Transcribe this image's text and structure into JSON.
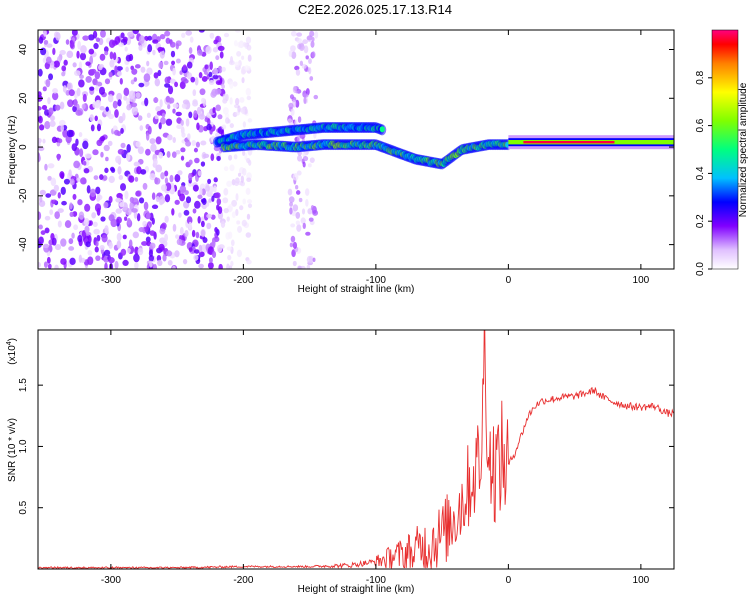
{
  "title": "C2E2.2026.025.17.13.R14",
  "colors": {
    "background": "#ffffff",
    "axis": "#000000",
    "snr_line": "#e83030",
    "scatter_dense": "#6a10e0"
  },
  "chart_data": [
    {
      "type": "heatmap",
      "name": "spectrogram",
      "xlabel": "Height of straight line (km)",
      "ylabel": "Frequency (Hz)",
      "xlim": [
        -355,
        125
      ],
      "ylim": [
        -50,
        48
      ],
      "xticks": [
        -300,
        -200,
        -100,
        0,
        100
      ],
      "yticks": [
        -40,
        -20,
        0,
        20,
        40
      ],
      "xtick_labels": [
        "-300",
        "-200",
        "-100",
        "0",
        "100"
      ],
      "ytick_labels": [
        "-40",
        "-20",
        "0",
        "20",
        "40"
      ],
      "colorbar": {
        "label": "Normalized spectral amplitude",
        "range": [
          0,
          1
        ],
        "ticks": [
          0.0,
          0.2,
          0.4,
          0.6,
          0.8
        ],
        "tick_labels": [
          "0.0",
          "0.2",
          "0.4",
          "0.6",
          "0.8"
        ],
        "colormap": [
          "#ffffff",
          "#e0c0ff",
          "#8000ff",
          "#0000ff",
          "#00c0ff",
          "#00ff80",
          "#80ff00",
          "#ffff00",
          "#ff8000",
          "#ff0000",
          "#ff0080"
        ]
      },
      "noise_region": {
        "x_range": [
          -355,
          -215
        ],
        "freq_range": [
          -50,
          48
        ],
        "amplitude": 0.15
      },
      "sparse_regions": [
        {
          "x_range": [
            -215,
            -195
          ],
          "amplitude": 0.05
        },
        {
          "x_range": [
            -165,
            -145
          ],
          "amplitude": 0.1
        }
      ],
      "upper_track": [
        {
          "x": -220,
          "f": 2
        },
        {
          "x": -200,
          "f": 5
        },
        {
          "x": -180,
          "f": 6
        },
        {
          "x": -160,
          "f": 7
        },
        {
          "x": -140,
          "f": 8
        },
        {
          "x": -120,
          "f": 8
        },
        {
          "x": -100,
          "f": 8
        },
        {
          "x": -95,
          "f": 7
        }
      ],
      "lower_track": [
        {
          "x": -215,
          "f": 0
        },
        {
          "x": -190,
          "f": 1
        },
        {
          "x": -160,
          "f": 0
        },
        {
          "x": -140,
          "f": 1
        },
        {
          "x": -120,
          "f": 1
        },
        {
          "x": -100,
          "f": 1
        },
        {
          "x": -90,
          "f": -1
        },
        {
          "x": -80,
          "f": -3
        },
        {
          "x": -70,
          "f": -5
        },
        {
          "x": -60,
          "f": -6
        },
        {
          "x": -50,
          "f": -7
        },
        {
          "x": -45,
          "f": -5
        },
        {
          "x": -35,
          "f": -1
        },
        {
          "x": -25,
          "f": 0
        },
        {
          "x": -15,
          "f": 1
        },
        {
          "x": 0,
          "f": 1
        }
      ],
      "carrier_line": {
        "x_range": [
          0,
          125
        ],
        "f": 2,
        "amplitude": 0.95
      }
    },
    {
      "type": "line",
      "name": "snr",
      "xlabel": "Height of straight line (km)",
      "ylabel": "SNR (10 * v/v)",
      "multiplier_label": "(x10",
      "multiplier_exponent": "4",
      "multiplier_close": ")",
      "xlim": [
        -355,
        125
      ],
      "ylim": [
        0,
        1.95
      ],
      "xticks": [
        -300,
        -200,
        -100,
        0,
        100
      ],
      "yticks": [
        0.5,
        1.0,
        1.5
      ],
      "xtick_labels": [
        "-300",
        "-200",
        "-100",
        "0",
        "100"
      ],
      "ytick_labels": [
        "0.5",
        "1.0",
        "1.5"
      ],
      "series": [
        {
          "name": "SNR",
          "x": [
            -355,
            -300,
            -250,
            -200,
            -150,
            -120,
            -100,
            -90,
            -80,
            -70,
            -60,
            -50,
            -45,
            -40,
            -35,
            -30,
            -25,
            -20,
            -18,
            -15,
            -10,
            -5,
            0,
            5,
            10,
            15,
            20,
            25,
            30,
            40,
            50,
            60,
            65,
            70,
            80,
            90,
            100,
            110,
            120,
            125
          ],
          "y": [
            0.01,
            0.01,
            0.01,
            0.02,
            0.02,
            0.03,
            0.06,
            0.09,
            0.12,
            0.16,
            0.2,
            0.28,
            0.35,
            0.45,
            0.55,
            0.68,
            0.8,
            0.95,
            1.95,
            0.88,
            0.82,
            0.9,
            0.85,
            0.95,
            1.1,
            1.25,
            1.33,
            1.37,
            1.38,
            1.4,
            1.41,
            1.44,
            1.46,
            1.41,
            1.36,
            1.33,
            1.32,
            1.33,
            1.27,
            1.27
          ]
        }
      ]
    }
  ]
}
